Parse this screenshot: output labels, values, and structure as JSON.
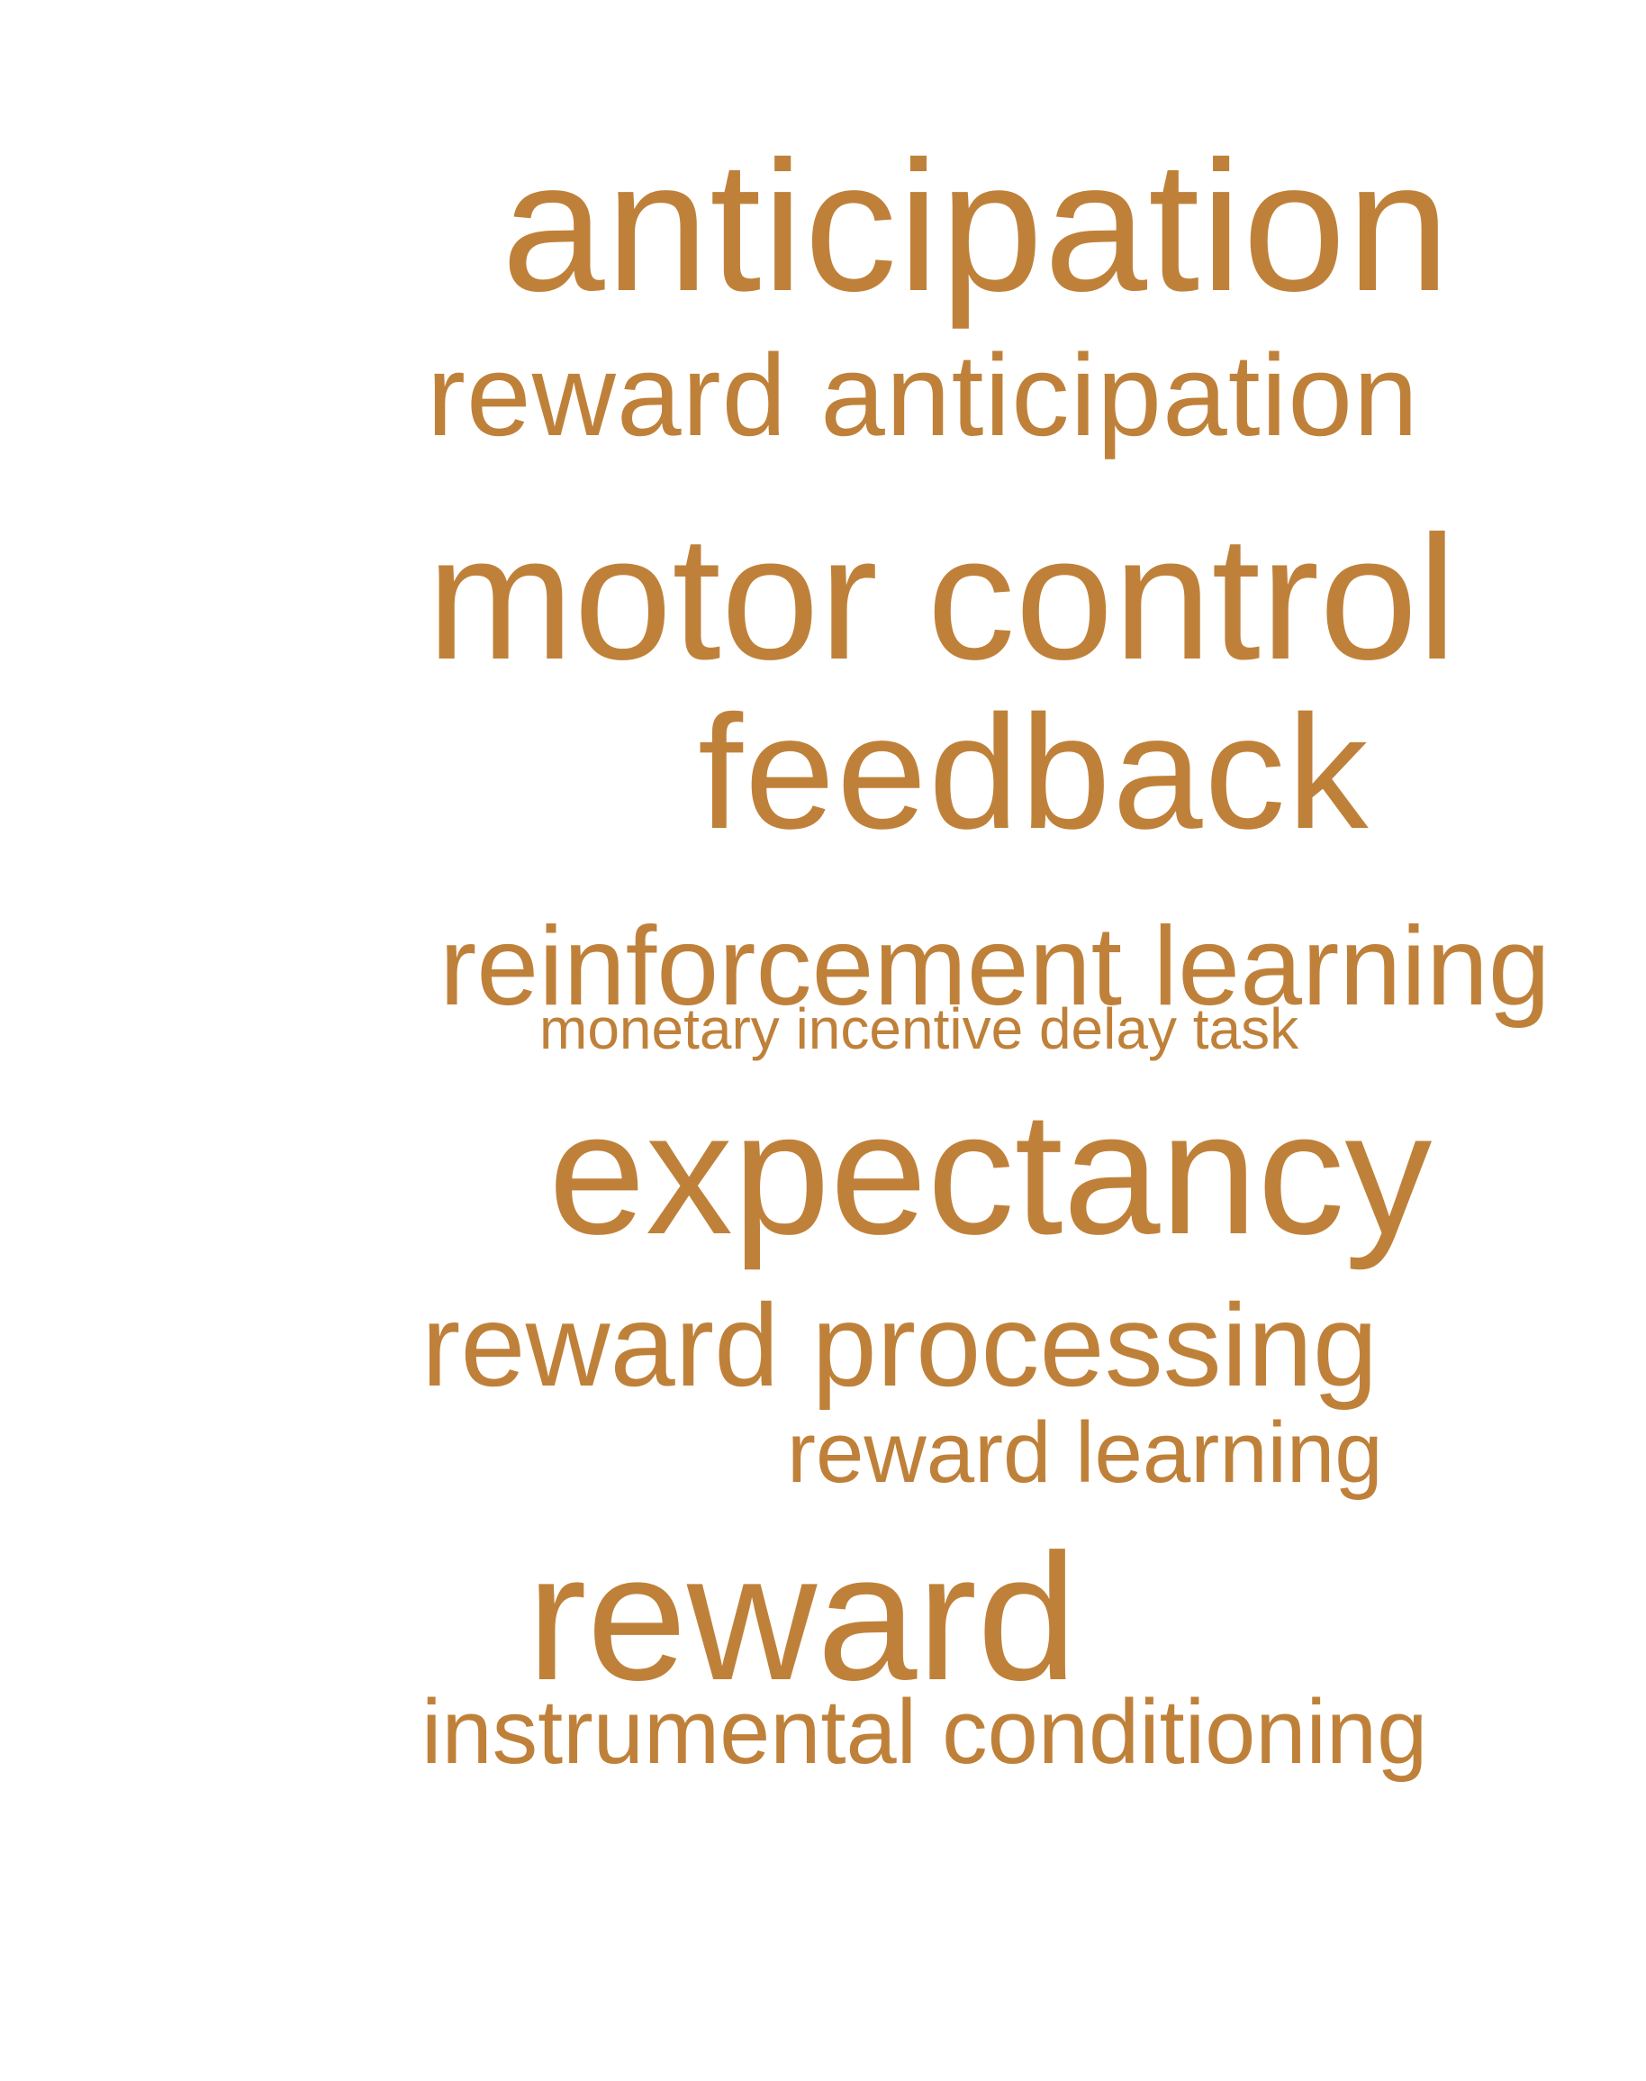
{
  "word_cloud": {
    "color": "#bf813a",
    "terms": [
      "anticipation",
      "reward anticipation",
      "motor control",
      "feedback",
      "reinforcement learning",
      "monetary incentive delay task",
      "expectancy",
      "reward processing",
      "reward learning",
      "reward",
      "instrumental conditioning"
    ]
  }
}
